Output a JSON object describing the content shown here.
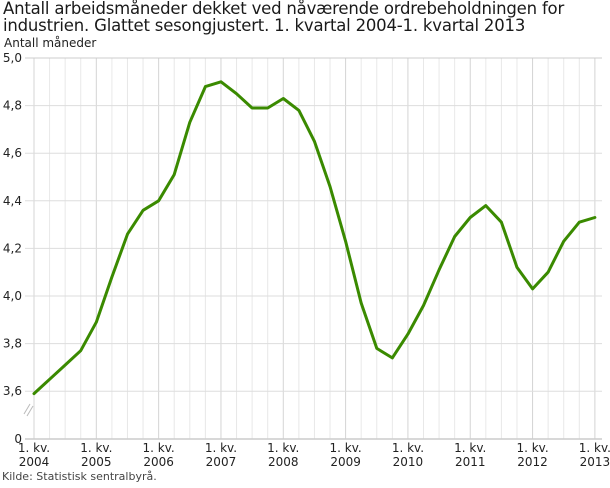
{
  "header": {
    "title": "Antall arbeidsmåneder dekket ved nåværende ordrebeholdningen for industrien. Glattet sesongjustert. 1. kvartal 2004-1. kvartal 2013",
    "unit_label": "Antall måneder"
  },
  "footer": {
    "source": "Kilde: Statistisk sentralbyrå."
  },
  "colors": {
    "line": "#3a8a00",
    "grid": "#dcdcdc",
    "axis": "#cccccc"
  },
  "chart_data": {
    "type": "line",
    "title": "Antall arbeidsmåneder dekket ved nåværende ordrebeholdningen for industrien. Glattet sesongjustert. 1. kvartal 2004-1. kvartal 2013",
    "xlabel": "",
    "ylabel": "Antall måneder",
    "ylim": [
      3.6,
      5.0
    ],
    "y_axis_break": true,
    "y_ticks": [
      "0",
      "3,6",
      "3,8",
      "4,0",
      "4,2",
      "4,4",
      "4,6",
      "4,8",
      "5,0"
    ],
    "x_tick_labels": [
      [
        "1. kv.",
        "2004"
      ],
      [
        "1. kv.",
        "2005"
      ],
      [
        "1. kv.",
        "2006"
      ],
      [
        "1. kv.",
        "2007"
      ],
      [
        "1. kv.",
        "2008"
      ],
      [
        "1. kv.",
        "2009"
      ],
      [
        "1. kv.",
        "2010"
      ],
      [
        "1. kv.",
        "2011"
      ],
      [
        "1. kv.",
        "2012"
      ],
      [
        "1. kv.",
        "2013"
      ]
    ],
    "grid": true,
    "legend": null,
    "x": [
      "2004K1",
      "2004K2",
      "2004K3",
      "2004K4",
      "2005K1",
      "2005K2",
      "2005K3",
      "2005K4",
      "2006K1",
      "2006K2",
      "2006K3",
      "2006K4",
      "2007K1",
      "2007K2",
      "2007K3",
      "2007K4",
      "2008K1",
      "2008K2",
      "2008K3",
      "2008K4",
      "2009K1",
      "2009K2",
      "2009K3",
      "2009K4",
      "2010K1",
      "2010K2",
      "2010K3",
      "2010K4",
      "2011K1",
      "2011K2",
      "2011K3",
      "2011K4",
      "2012K1",
      "2012K2",
      "2012K3",
      "2012K4",
      "2013K1"
    ],
    "series": [
      {
        "name": "Antall måneder",
        "values": [
          3.59,
          3.65,
          3.71,
          3.77,
          3.89,
          4.08,
          4.26,
          4.36,
          4.4,
          4.51,
          4.73,
          4.88,
          4.9,
          4.85,
          4.79,
          4.79,
          4.83,
          4.78,
          4.65,
          4.46,
          4.23,
          3.97,
          3.78,
          3.74,
          3.84,
          3.96,
          4.11,
          4.25,
          4.33,
          4.38,
          4.31,
          4.12,
          4.03,
          4.1,
          4.23,
          4.31,
          4.33
        ]
      }
    ]
  }
}
